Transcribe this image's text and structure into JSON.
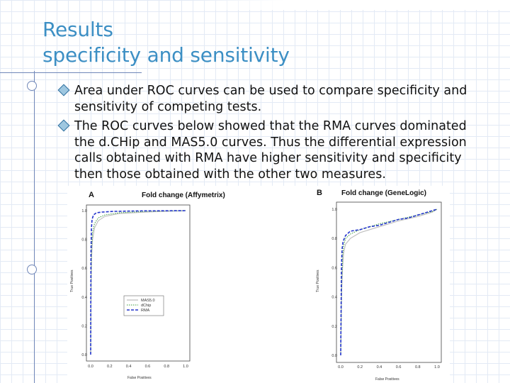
{
  "title": {
    "line1": "Results",
    "line2": "specificity and sensitivity"
  },
  "bullets": [
    "Area under ROC curves can be used to compare specificity and sensitivity of competing tests.",
    "The ROC curves below showed that the RMA curves dominated the d.CHip and MAS5.0 curves. Thus the differential expression calls obtained with RMA have higher sensitivity and specificity then those obtained with the other two measures."
  ],
  "figure": {
    "panel_a_letter": "A",
    "panel_b_letter": "B",
    "panel_a_title": "Fold change (Affymetrix)",
    "panel_b_title": "Fold change (GeneLogic)",
    "ylabel": "True Positives",
    "xlabel": "False Positives",
    "legend": [
      "MAS5.0",
      "dChip",
      "RMA"
    ]
  },
  "chart_data": [
    {
      "type": "line",
      "title": "Fold change (Affymetrix)",
      "xlabel": "False Positives",
      "ylabel": "True Positives",
      "xlim": [
        0,
        1
      ],
      "ylim": [
        0,
        1
      ],
      "xticks": [
        "0.0",
        "0.2",
        "0.4",
        "0.6",
        "0.8",
        "1.0"
      ],
      "yticks": [
        "0.0",
        "0.2",
        "0.4",
        "0.6",
        "0.8",
        "1.0"
      ],
      "legend_position": "lower-center",
      "series": [
        {
          "name": "MAS5.0",
          "color": "#bbbbbb",
          "x": [
            0,
            0.005,
            0.01,
            0.02,
            0.04,
            0.08,
            0.15,
            0.3,
            0.6,
            1.0
          ],
          "y": [
            0,
            0.5,
            0.68,
            0.8,
            0.88,
            0.93,
            0.96,
            0.98,
            0.99,
            1.0
          ]
        },
        {
          "name": "dChip",
          "color": "#3c9a3c",
          "x": [
            0,
            0.005,
            0.01,
            0.02,
            0.04,
            0.08,
            0.15,
            0.3,
            0.6,
            1.0
          ],
          "y": [
            0,
            0.55,
            0.75,
            0.85,
            0.91,
            0.95,
            0.97,
            0.985,
            0.995,
            1.0
          ]
        },
        {
          "name": "RMA",
          "color": "#2233cc",
          "x": [
            0,
            0.003,
            0.008,
            0.015,
            0.03,
            0.06,
            0.12,
            0.25,
            0.5,
            1.0
          ],
          "y": [
            0,
            0.7,
            0.88,
            0.94,
            0.97,
            0.985,
            0.99,
            0.995,
            0.998,
            1.0
          ]
        }
      ]
    },
    {
      "type": "line",
      "title": "Fold change (GeneLogic)",
      "xlabel": "False Positives",
      "ylabel": "True Positives",
      "xlim": [
        0,
        1
      ],
      "ylim": [
        0,
        1
      ],
      "xticks": [
        "0.0",
        "0.2",
        "0.4",
        "0.6",
        "0.8",
        "1.0"
      ],
      "yticks": [
        "0.0",
        "0.2",
        "0.4",
        "0.6",
        "0.8",
        "1.0"
      ],
      "series": [
        {
          "name": "MAS5.0",
          "color": "#bbbbbb",
          "x": [
            0,
            0.01,
            0.02,
            0.03,
            0.05,
            0.1,
            0.2,
            0.4,
            0.6,
            0.8,
            0.95,
            1.0
          ],
          "y": [
            0,
            0.45,
            0.6,
            0.7,
            0.76,
            0.8,
            0.84,
            0.88,
            0.92,
            0.95,
            0.98,
            1.0
          ]
        },
        {
          "name": "dChip",
          "color": "#3c9a3c",
          "x": [
            0,
            0.01,
            0.02,
            0.03,
            0.05,
            0.1,
            0.2,
            0.4,
            0.6,
            0.8,
            0.95,
            1.0
          ],
          "y": [
            0,
            0.5,
            0.68,
            0.75,
            0.8,
            0.83,
            0.86,
            0.9,
            0.93,
            0.96,
            0.985,
            1.0
          ]
        },
        {
          "name": "RMA",
          "color": "#2233cc",
          "x": [
            0,
            0.008,
            0.015,
            0.025,
            0.05,
            0.1,
            0.2,
            0.3,
            0.4,
            0.5,
            0.6,
            0.7,
            0.8,
            0.9,
            1.0
          ],
          "y": [
            0,
            0.62,
            0.73,
            0.78,
            0.82,
            0.85,
            0.86,
            0.88,
            0.89,
            0.91,
            0.93,
            0.94,
            0.96,
            0.98,
            1.0
          ]
        }
      ]
    }
  ]
}
